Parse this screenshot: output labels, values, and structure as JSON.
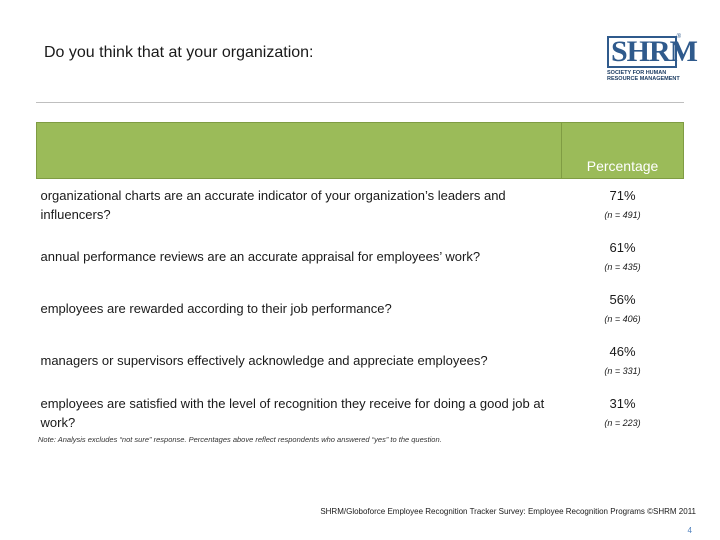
{
  "title": "Do you think that at your organization:",
  "logo": {
    "mark": "SHRM",
    "line1": "SOCIETY FOR HUMAN",
    "line2": "RESOURCE MANAGEMENT",
    "reg": "®"
  },
  "table": {
    "header": "Percentage",
    "rows": [
      {
        "question": "organizational charts are an accurate indicator of your organization’s leaders and influencers?",
        "percent": "71%",
        "n": "(n = 491)"
      },
      {
        "question": "annual performance reviews are an accurate appraisal for employees’ work?",
        "percent": "61%",
        "n": "(n = 435)"
      },
      {
        "question": "employees are rewarded according to their job performance?",
        "percent": "56%",
        "n": "(n = 406)"
      },
      {
        "question": "managers or supervisors effectively acknowledge and appreciate employees?",
        "percent": "46%",
        "n": "(n = 331)"
      },
      {
        "question": "employees are satisfied with the level of recognition they receive for doing a good job at work?",
        "percent": "31%",
        "n": "(n = 223)"
      }
    ]
  },
  "note": "Note: Analysis excludes “not sure” response. Percentages above reflect respondents who answered “yes” to the question.",
  "footer": "SHRM/Globoforce Employee Recognition Tracker Survey: Employee Recognition Programs ©SHRM 2011",
  "page_number": "4",
  "colors": {
    "header_green": "#9bbb59",
    "logo_blue": "#2f5a8c",
    "page_number": "#4f81bd"
  }
}
